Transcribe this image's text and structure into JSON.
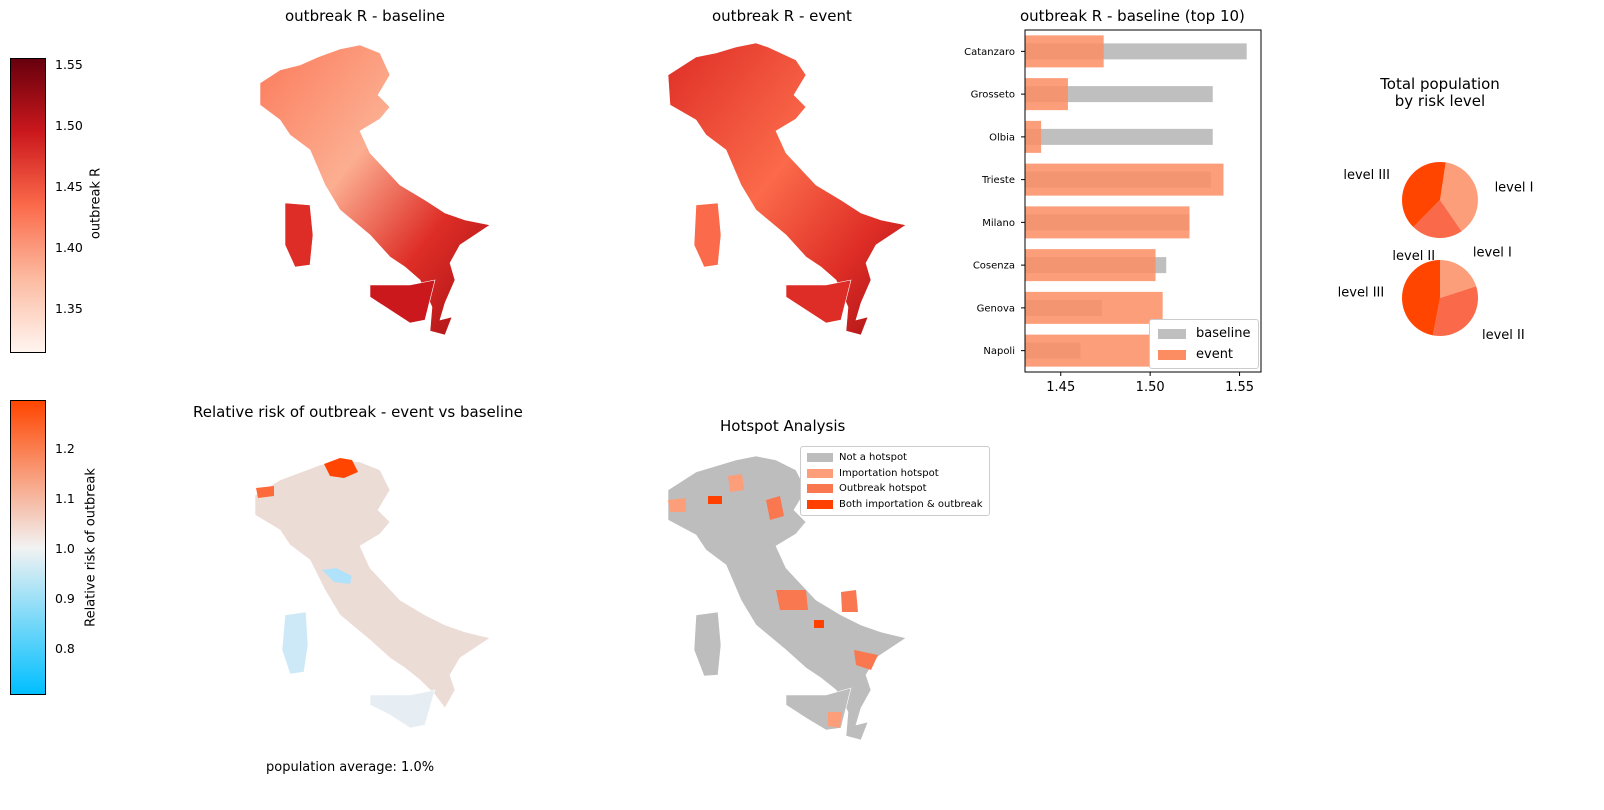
{
  "colorbar_top": {
    "label": "outbreak R",
    "ticks": [
      "1.55",
      "1.50",
      "1.45",
      "1.40",
      "1.35"
    ],
    "gradient": [
      "#fff5f0",
      "#fcbba1",
      "#fb6a4a",
      "#cb181d",
      "#67000d"
    ]
  },
  "colorbar_bottom": {
    "label": "Relative risk of outbreak",
    "ticks": [
      "1.2",
      "1.1",
      "1.0",
      "0.9",
      "0.8"
    ],
    "gradient": [
      "#00bfff",
      "#f2f2f2",
      "#ff4500"
    ]
  },
  "maps": {
    "baseline_title": "outbreak R - baseline",
    "event_title": "outbreak R - event",
    "relative_title": "Relative risk of outbreak - event vs baseline",
    "hotspot_title": "Hotspot Analysis",
    "population_average": "population average: 1.0%"
  },
  "hotspot_legend": [
    {
      "label": "Not a hotspot",
      "color": "#bdbdbd"
    },
    {
      "label": "Importation hotspot",
      "color": "#fc9e7a"
    },
    {
      "label": "Outbreak hotspot",
      "color": "#fa7850"
    },
    {
      "label": "Both importation & outbreak",
      "color": "#ff4000"
    }
  ],
  "chart_data": [
    {
      "type": "bar",
      "title": "outbreak R - baseline (top 10)",
      "orientation": "horizontal",
      "categories": [
        "Catanzaro",
        "Grosseto",
        "Olbia",
        "Trieste",
        "Milano",
        "Cosenza",
        "Genova",
        "Napoli"
      ],
      "series": [
        {
          "name": "baseline",
          "color": "#bfbfbf",
          "values": [
            1.554,
            1.535,
            1.535,
            1.534,
            1.522,
            1.509,
            1.473,
            1.461
          ]
        },
        {
          "name": "event",
          "color": "#fc8d62",
          "values": [
            1.474,
            1.454,
            1.439,
            1.541,
            1.522,
            1.503,
            1.507,
            1.5
          ]
        }
      ],
      "xlim": [
        1.43,
        1.562
      ],
      "xticks": [
        "1.45",
        "1.50",
        "1.55"
      ],
      "xtick_values": [
        1.45,
        1.5,
        1.55
      ],
      "legend": "lower-right"
    },
    {
      "type": "pie",
      "title": "Total population\nby risk level",
      "title_lines": [
        "Total population",
        "by risk level"
      ],
      "pies": [
        {
          "labels": [
            "level I",
            "level II",
            "level III"
          ],
          "values": [
            38,
            22,
            40
          ],
          "colors": [
            "#fc9e7a",
            "#fa6a4a",
            "#ff4500"
          ]
        },
        {
          "labels": [
            "level I",
            "level II",
            "level III"
          ],
          "values": [
            20,
            33,
            47
          ],
          "colors": [
            "#fc9e7a",
            "#fa6a4a",
            "#ff4500"
          ]
        }
      ]
    }
  ]
}
